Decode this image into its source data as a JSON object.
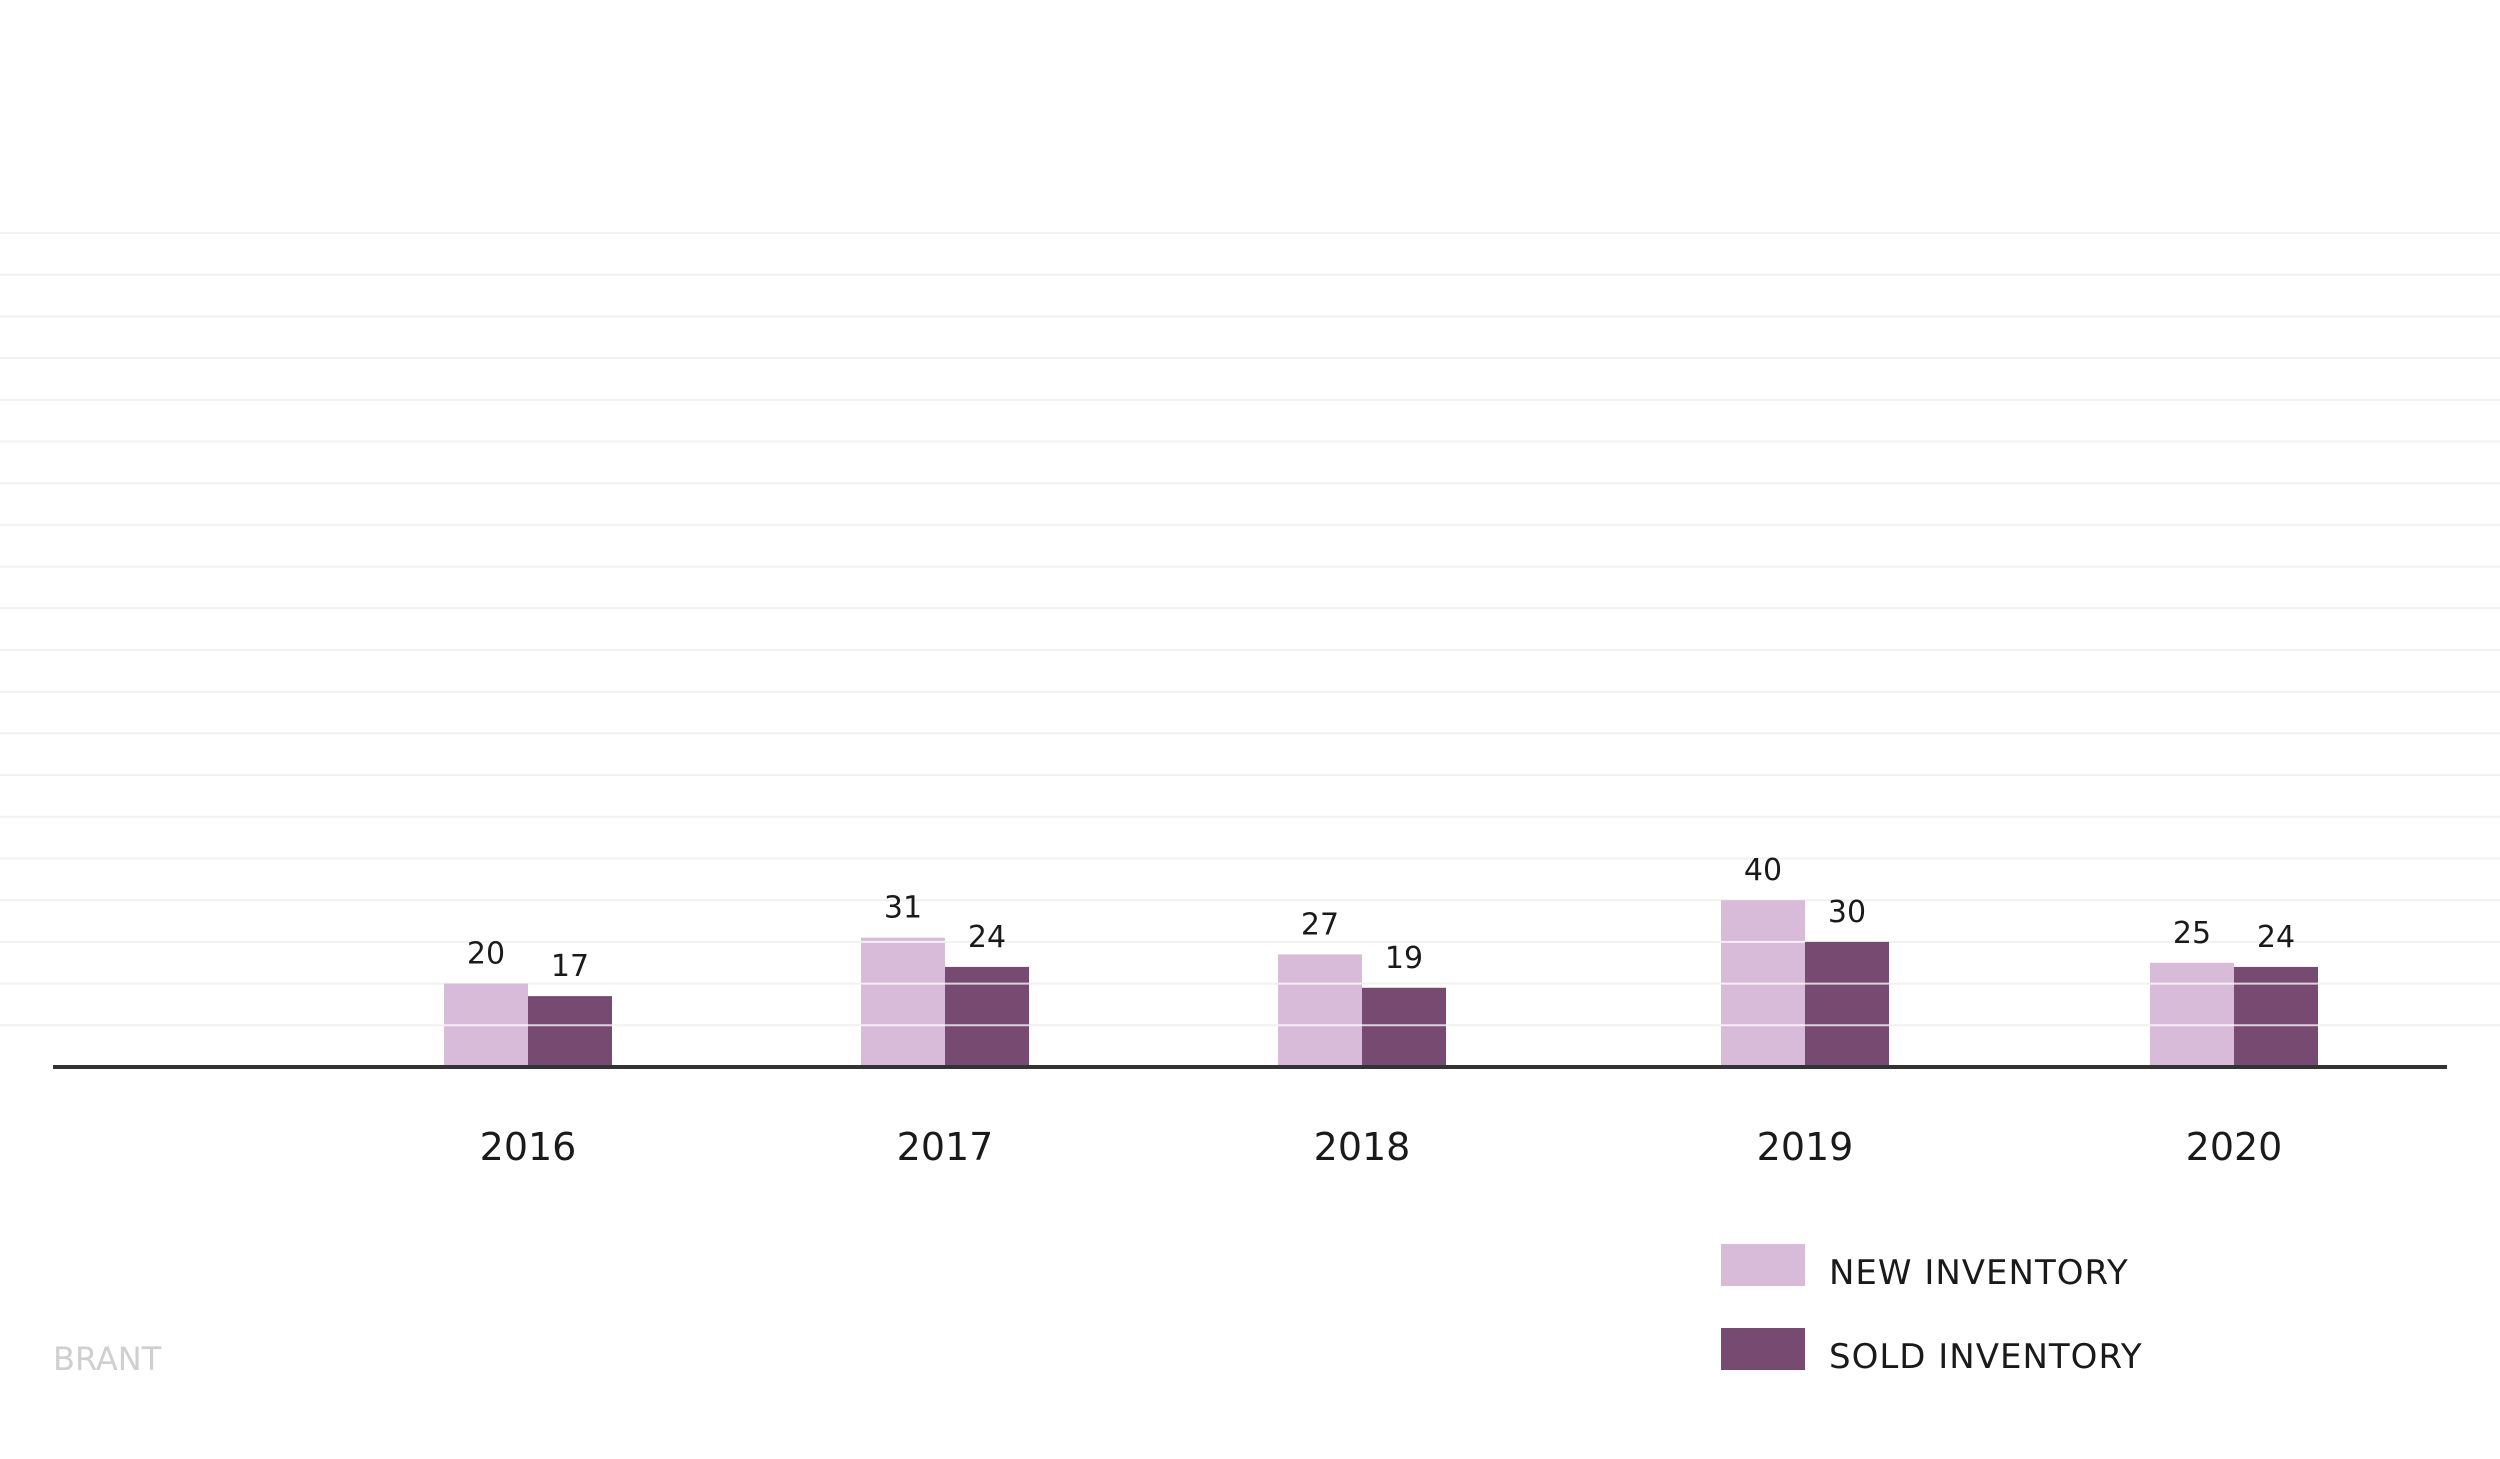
{
  "chart_data": {
    "type": "bar",
    "title": "",
    "xlabel": "",
    "ylabel": "",
    "categories": [
      "2016",
      "2017",
      "2018",
      "2019",
      "2020"
    ],
    "series": [
      {
        "name": "NEW INVENTORY",
        "values": [
          20,
          31,
          27,
          40,
          25
        ],
        "color": "#d7bbd9"
      },
      {
        "name": "SOLD INVENTORY",
        "values": [
          17,
          24,
          19,
          30,
          24
        ],
        "color": "#774a72"
      }
    ],
    "ylim": [
      0,
      200
    ],
    "grid": true,
    "y_tick_labels_shown": false,
    "legend_position": "bottom-right",
    "axis_color": "#333333",
    "grid_color": "#f1f1f1"
  },
  "brand": "BRANT"
}
